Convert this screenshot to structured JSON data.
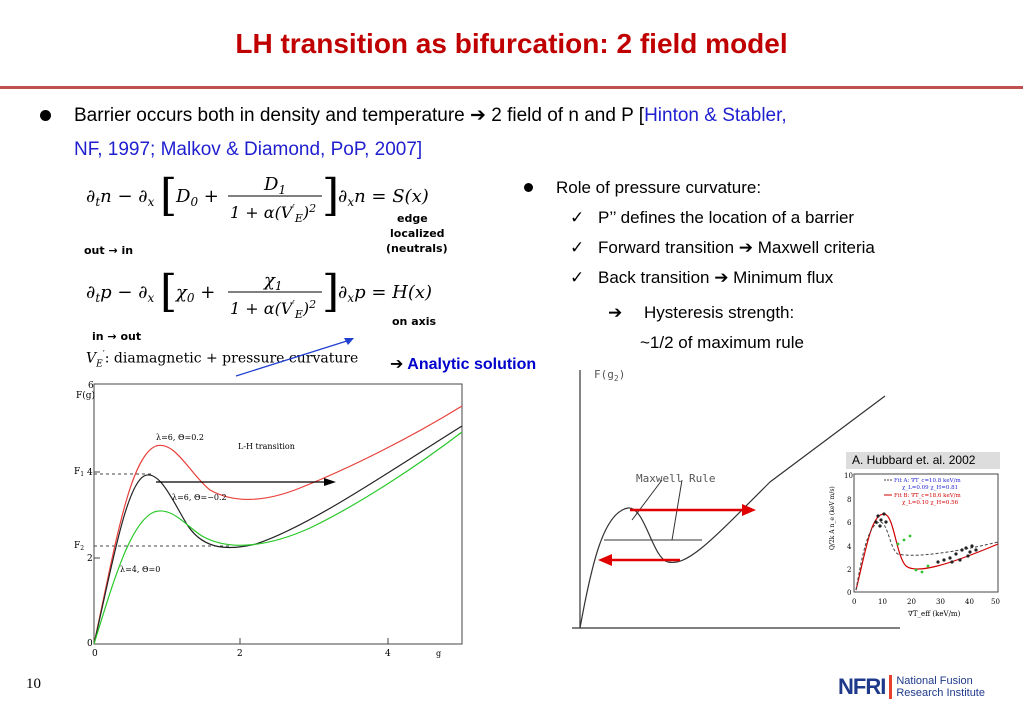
{
  "slide": {
    "title": "LH transition as bifurcation: 2 field model",
    "page_number": "10"
  },
  "main_bullet": {
    "text": "Barrier occurs both in density and temperature",
    "arrow": "➔",
    "text2": " 2 field of n and P [",
    "ref_line1": "Hinton & Stabler,",
    "ref_line2": "NF, 1997; Malkov & Diamond, PoP, 2007]",
    "ref_close": "]"
  },
  "equations": {
    "eq1_label_edge": "edge",
    "eq1_label_localized": "localized",
    "eq1_label_neutrals": "(neutrals)",
    "eq1_dir": "out → in",
    "eq2_label_axis": "on axis",
    "eq2_dir": "in → out",
    "ve_line": ": diamagnetic + pressure curvature",
    "analytic_arrow": "➔",
    "analytic": "Analytic solution"
  },
  "right_bullets": {
    "header": "Role of pressure curvature:",
    "check_mark": "✓",
    "items": [
      "P’’ defines the location of a barrier",
      "Forward transition ➔ Maxwell criteria",
      "Back transition ➔ Minimum flux"
    ],
    "sub_arrow": "➔",
    "sub_item": "Hysteresis strength:",
    "sub_item2": "~1/2 of maximum rule"
  },
  "left_plot": {
    "y_title": "F(g)",
    "x_title": "g",
    "y_ticks": [
      "6",
      "4",
      "2",
      "0"
    ],
    "x_ticks": [
      "0",
      "2",
      "4"
    ],
    "f1_label": "F",
    "f1_sub": "1",
    "f2_label": "F",
    "f2_sub": "2",
    "curve_labels": [
      "λ=6, Θ=0.2",
      "λ=6, Θ=−0.2",
      "λ=4, Θ=0"
    ],
    "transition_label": "L-H transition",
    "colors": {
      "red": "#e8403a",
      "green": "#28c828",
      "black": "#222222"
    }
  },
  "right_plot": {
    "y_title": "F(g",
    "y_title_sub": "2",
    "y_title_close": ")",
    "maxwell_label": "Maxwell Rule",
    "colors": {
      "arrow": "#e00000"
    }
  },
  "inset": {
    "caption": "A. Hubbard et. al. 2002",
    "y_label": "Q/2k A n_e (keV m/s)",
    "x_label": "∇T_eff (keV/m)",
    "y_ticks": [
      "10",
      "8",
      "6",
      "4",
      "2",
      "0"
    ],
    "x_ticks": [
      "0",
      "10",
      "20",
      "30",
      "40",
      "50"
    ],
    "legend": [
      "Fit A: ∇T_c=10.8 keV/m",
      "χ_L=0.09   χ_H=0.81",
      "Fit B: ∇T_c=18.6 keV/m",
      "χ_L=0.10   χ_H=0.56"
    ]
  },
  "logo": {
    "mark": "NFRI",
    "line1": "National Fusion",
    "line2": "Research Institute"
  }
}
